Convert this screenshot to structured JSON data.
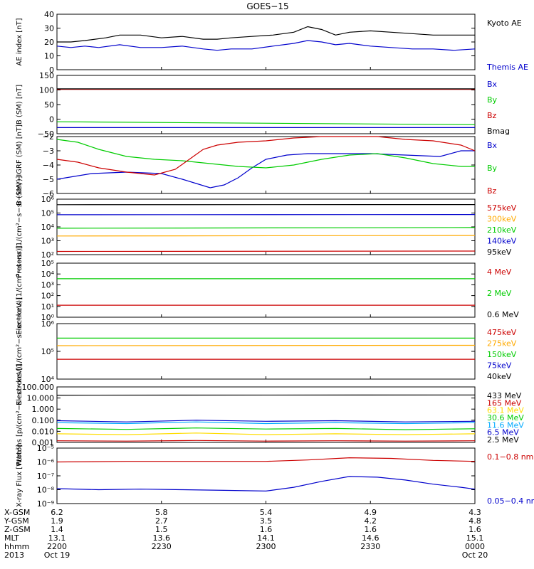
{
  "title": "GOES−15",
  "chart_data": [
    {
      "type": "line",
      "ylabel": "AE index [nT]",
      "ylim": [
        0,
        40
      ],
      "yticks": [
        {
          "v": 0,
          "label": "0"
        },
        {
          "v": 10,
          "label": "10"
        },
        {
          "v": 20,
          "label": "20"
        },
        {
          "v": 30,
          "label": "30"
        },
        {
          "v": 40,
          "label": "40"
        }
      ],
      "series": [
        {
          "name": "Kyoto AE",
          "color": "#000000",
          "x": [
            0,
            2,
            4,
            7,
            9,
            12,
            15,
            18,
            21,
            23,
            25,
            28,
            31,
            34,
            36,
            38,
            40,
            42,
            45,
            48,
            51,
            54,
            57,
            60
          ],
          "values": [
            20,
            20,
            21,
            23,
            25,
            25,
            23,
            24,
            22,
            22,
            23,
            24,
            25,
            27,
            31,
            29,
            25,
            27,
            28,
            27,
            26,
            25,
            25,
            25
          ]
        },
        {
          "name": "Themis AE",
          "color": "#0000cc",
          "x": [
            0,
            2,
            4,
            6,
            9,
            12,
            15,
            18,
            21,
            23,
            25,
            28,
            31,
            34,
            36,
            38,
            40,
            42,
            45,
            48,
            51,
            54,
            57,
            60
          ],
          "values": [
            17,
            16,
            17,
            16,
            18,
            16,
            16,
            17,
            15,
            14,
            15,
            15,
            17,
            19,
            21,
            20,
            18,
            19,
            17,
            16,
            15,
            15,
            14,
            15
          ]
        }
      ]
    },
    {
      "type": "line",
      "ylabel": "B (SM) [nT]",
      "ylim": [
        -50,
        150
      ],
      "yticks": [
        {
          "v": -50,
          "label": "−50"
        },
        {
          "v": 0,
          "label": "0"
        },
        {
          "v": 50,
          "label": "50"
        },
        {
          "v": 100,
          "label": "100"
        },
        {
          "v": 150,
          "label": "150"
        }
      ],
      "series": [
        {
          "name": "Bx",
          "color": "#0000cc",
          "x": [
            0,
            60
          ],
          "values": [
            -29,
            -29
          ]
        },
        {
          "name": "By",
          "color": "#00cc00",
          "x": [
            0,
            60
          ],
          "values": [
            -9,
            -19
          ]
        },
        {
          "name": "Bz",
          "color": "#cc0000",
          "x": [
            0,
            60
          ],
          "values": [
            102,
            102
          ]
        },
        {
          "name": "Bmag",
          "color": "#000000",
          "x": [
            0,
            60
          ],
          "values": [
            104,
            104
          ]
        }
      ]
    },
    {
      "type": "line",
      "ylabel": "B (SM)−IGRF (SM) [nT]",
      "ylim": [
        -6,
        -2
      ],
      "yticks": [
        {
          "v": -6,
          "label": "−6"
        },
        {
          "v": -5,
          "label": "−5"
        },
        {
          "v": -4,
          "label": "−4"
        },
        {
          "v": -3,
          "label": "−3"
        },
        {
          "v": -2,
          "label": "−2"
        }
      ],
      "series": [
        {
          "name": "Bx",
          "color": "#0000cc",
          "x": [
            0,
            5,
            10,
            15,
            18,
            20,
            22,
            24,
            26,
            28,
            30,
            33,
            36,
            40,
            45,
            50,
            55,
            58,
            60
          ],
          "values": [
            -5.0,
            -4.6,
            -4.5,
            -4.6,
            -5.0,
            -5.3,
            -5.6,
            -5.4,
            -4.9,
            -4.2,
            -3.6,
            -3.3,
            -3.2,
            -3.2,
            -3.2,
            -3.3,
            -3.4,
            -3.0,
            -3.0
          ]
        },
        {
          "name": "By",
          "color": "#00cc00",
          "x": [
            0,
            3,
            6,
            10,
            14,
            18,
            22,
            26,
            30,
            34,
            38,
            42,
            46,
            50,
            54,
            58,
            60
          ],
          "values": [
            -2.2,
            -2.4,
            -2.9,
            -3.4,
            -3.6,
            -3.7,
            -3.9,
            -4.1,
            -4.2,
            -4.0,
            -3.6,
            -3.3,
            -3.2,
            -3.5,
            -3.9,
            -4.1,
            -4.1
          ]
        },
        {
          "name": "Bz",
          "color": "#cc0000",
          "x": [
            0,
            3,
            6,
            10,
            14,
            17,
            19,
            21,
            23,
            26,
            30,
            34,
            38,
            42,
            46,
            50,
            54,
            58,
            60
          ],
          "values": [
            -3.6,
            -3.8,
            -4.2,
            -4.5,
            -4.7,
            -4.3,
            -3.6,
            -2.9,
            -2.6,
            -2.4,
            -2.3,
            -2.1,
            -1.9,
            -1.8,
            -2.0,
            -2.2,
            -2.3,
            -2.6,
            -3.0
          ]
        }
      ]
    },
    {
      "type": "line",
      "ylabel": "Protons [1/(cm²−s−sr−keV)]",
      "yscale": "log",
      "ylim": [
        100,
        1000000
      ],
      "yticks": [
        {
          "v": 100,
          "label": "10²"
        },
        {
          "v": 1000,
          "label": "10³"
        },
        {
          "v": 10000,
          "label": "10⁴"
        },
        {
          "v": 100000,
          "label": "10⁵"
        },
        {
          "v": 1000000,
          "label": "10⁶"
        }
      ],
      "series": [
        {
          "name": "575keV",
          "color": "#cc0000",
          "x": [
            0,
            60
          ],
          "values": [
            170,
            180
          ]
        },
        {
          "name": "300keV",
          "color": "#ffaa00",
          "x": [
            0,
            60
          ],
          "values": [
            2200,
            2400
          ]
        },
        {
          "name": "210keV",
          "color": "#00cc00",
          "x": [
            0,
            60
          ],
          "values": [
            8000,
            9000
          ]
        },
        {
          "name": "140keV",
          "color": "#0000cc",
          "x": [
            0,
            60
          ],
          "values": [
            75000,
            78000
          ]
        },
        {
          "name": "95keV",
          "color": "#000000",
          "x": [
            0,
            60
          ],
          "values": [
            400000,
            410000
          ]
        }
      ]
    },
    {
      "type": "line",
      "ylabel": "Electrons [1/(cm²−s−sr)]",
      "yscale": "log",
      "ylim": [
        1,
        100000
      ],
      "yticks": [
        {
          "v": 1,
          "label": "10⁰"
        },
        {
          "v": 10,
          "label": "10¹"
        },
        {
          "v": 100,
          "label": "10²"
        },
        {
          "v": 1000,
          "label": "10³"
        },
        {
          "v": 10000,
          "label": "10⁴"
        },
        {
          "v": 100000,
          "label": "10⁵"
        }
      ],
      "series": [
        {
          "name": "4 MeV",
          "color": "#cc0000",
          "x": [
            0,
            60
          ],
          "values": [
            13,
            13
          ]
        },
        {
          "name": "2 MeV",
          "color": "#00cc00",
          "x": [
            0,
            60
          ],
          "values": [
            3600,
            3600
          ]
        },
        {
          "name": "0.6 MeV",
          "color": "#000000",
          "x": [
            0,
            60
          ],
          "values": [
            null,
            null
          ]
        }
      ]
    },
    {
      "type": "line",
      "ylabel": "Electrons [1/(cm²−s−sr−keV)]",
      "yscale": "log",
      "ylim": [
        10000,
        1000000
      ],
      "yticks": [
        {
          "v": 10000,
          "label": "10⁴"
        },
        {
          "v": 100000,
          "label": "10⁵"
        },
        {
          "v": 1000000,
          "label": "10⁶"
        }
      ],
      "series": [
        {
          "name": "475keV",
          "color": "#cc0000",
          "x": [
            0,
            60
          ],
          "values": [
            52000,
            52000
          ]
        },
        {
          "name": "275keV",
          "color": "#ffaa00",
          "x": [
            0,
            60
          ],
          "values": [
            160000,
            165000
          ]
        },
        {
          "name": "150keV",
          "color": "#00cc00",
          "x": [
            0,
            60
          ],
          "values": [
            300000,
            300000
          ]
        },
        {
          "name": "75keV",
          "color": "#0000cc",
          "x": [
            0,
            60
          ],
          "values": [
            null,
            null
          ]
        },
        {
          "name": "40keV",
          "color": "#000000",
          "x": [
            0,
            60
          ],
          "values": [
            null,
            null
          ]
        }
      ]
    },
    {
      "type": "line",
      "ylabel": "Protons [p/(cm²−s−sr−keV)]",
      "yscale": "log",
      "ylim": [
        0.001,
        100
      ],
      "yticks": [
        {
          "v": 0.001,
          "label": "0.001"
        },
        {
          "v": 0.01,
          "label": "0.010"
        },
        {
          "v": 0.1,
          "label": "0.100"
        },
        {
          "v": 1,
          "label": "1.000"
        },
        {
          "v": 10,
          "label": "10.000"
        },
        {
          "v": 100,
          "label": "100.000"
        }
      ],
      "series": [
        {
          "name": "433 MeV",
          "color": "#000000",
          "x": [
            0,
            60
          ],
          "values": [
            18,
            19
          ]
        },
        {
          "name": "165 MeV",
          "color": "#cc0000",
          "x": [
            0,
            10,
            20,
            30,
            40,
            50,
            60
          ],
          "values": [
            0.0014,
            0.0013,
            0.0015,
            0.0013,
            0.0014,
            0.0013,
            0.0014
          ]
        },
        {
          "name": "63.1 MeV",
          "color": "#ffdd00",
          "x": [
            0,
            10,
            20,
            30,
            40,
            50,
            60
          ],
          "values": [
            0.006,
            0.005,
            0.007,
            0.005,
            0.006,
            0.005,
            0.006
          ]
        },
        {
          "name": "30.6 MeV",
          "color": "#00cc00",
          "x": [
            0,
            10,
            20,
            30,
            40,
            50,
            60
          ],
          "values": [
            0.018,
            0.015,
            0.02,
            0.016,
            0.018,
            0.014,
            0.017
          ]
        },
        {
          "name": "11.6 MeV",
          "color": "#00aaff",
          "x": [
            0,
            10,
            20,
            30,
            40,
            50,
            60
          ],
          "values": [
            0.06,
            0.05,
            0.07,
            0.05,
            0.06,
            0.05,
            0.06
          ]
        },
        {
          "name": "6.5 MeV",
          "color": "#0000cc",
          "x": [
            0,
            10,
            20,
            30,
            40,
            50,
            60
          ],
          "values": [
            0.09,
            0.07,
            0.1,
            0.08,
            0.09,
            0.07,
            0.08
          ]
        },
        {
          "name": "2.5 MeV",
          "color": "#000000",
          "x": [
            0,
            60
          ],
          "values": [
            null,
            null
          ]
        }
      ]
    },
    {
      "type": "line",
      "ylabel": "X-ray Flux [W/m²]",
      "yscale": "log",
      "ylim": [
        1e-09,
        1e-05
      ],
      "yticks": [
        {
          "v": 1e-09,
          "label": "10⁻⁹"
        },
        {
          "v": 1e-08,
          "label": "10⁻⁸"
        },
        {
          "v": 1e-07,
          "label": "10⁻⁷"
        },
        {
          "v": 1e-06,
          "label": "10⁻⁶"
        },
        {
          "v": 1e-05,
          "label": "10⁻⁵"
        }
      ],
      "series": [
        {
          "name": "0.1−0.8 nm",
          "color": "#cc0000",
          "x": [
            0,
            10,
            20,
            30,
            36,
            42,
            48,
            54,
            60
          ],
          "values": [
            1e-06,
            1.1e-06,
            1.1e-06,
            1.1e-06,
            1.4e-06,
            2e-06,
            1.8e-06,
            1.3e-06,
            1.1e-06
          ]
        },
        {
          "name": "0.05−0.4 nm",
          "color": "#0000cc",
          "x": [
            0,
            6,
            12,
            18,
            24,
            30,
            34,
            38,
            42,
            46,
            50,
            54,
            58,
            60
          ],
          "values": [
            1.2e-08,
            1e-08,
            1.1e-08,
            1e-08,
            9e-09,
            8e-09,
            1.5e-08,
            4e-08,
            9e-08,
            8e-08,
            5e-08,
            2.5e-08,
            1.5e-08,
            1.1e-08
          ]
        }
      ]
    }
  ],
  "x_axis": {
    "xlim": [
      0,
      60
    ],
    "rows": [
      "X-GSM",
      "Y-GSM",
      "Z-GSM",
      "MLT",
      "hhmm",
      "2013"
    ],
    "columns": [
      {
        "x": 0,
        "values": [
          "6.2",
          "1.9",
          "1.4",
          "13.1",
          "2200",
          "Oct 19"
        ]
      },
      {
        "x": 15,
        "values": [
          "5.8",
          "2.7",
          "1.5",
          "13.6",
          "2230",
          ""
        ]
      },
      {
        "x": 30,
        "values": [
          "5.4",
          "3.5",
          "1.6",
          "14.1",
          "2300",
          ""
        ]
      },
      {
        "x": 45,
        "values": [
          "4.9",
          "4.2",
          "1.6",
          "14.6",
          "2330",
          ""
        ]
      },
      {
        "x": 60,
        "values": [
          "4.3",
          "4.8",
          "1.6",
          "15.1",
          "0000",
          "Oct 20"
        ]
      }
    ]
  }
}
